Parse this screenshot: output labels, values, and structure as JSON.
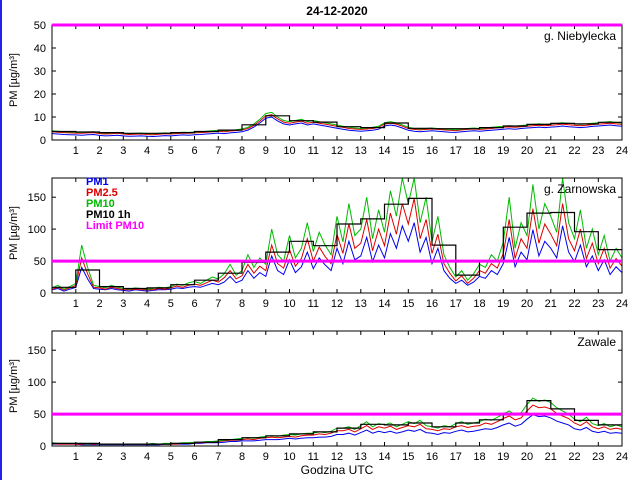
{
  "title": "24-12-2020",
  "xlabel": "Godzina UTC",
  "ylabel": "PM [µg/m³]",
  "colors": {
    "pm1": "#0000ee",
    "pm25": "#dd0000",
    "pm10": "#00bb00",
    "pm10_1h": "#000000",
    "limit": "#ff00ff",
    "window_edge": "#2222ee"
  },
  "legend": [
    {
      "id": "pm1",
      "label": "PM1",
      "color": "#0000ee"
    },
    {
      "id": "pm2-5",
      "label": "PM2.5",
      "color": "#dd0000"
    },
    {
      "id": "pm10",
      "label": "PM10",
      "color": "#00bb00"
    },
    {
      "id": "pm10-1h",
      "label": "PM10 1h",
      "color": "#000000"
    },
    {
      "id": "limit-pm10",
      "label": "Limit PM10",
      "color": "#ff00ff"
    }
  ],
  "chart_data": [
    {
      "type": "line",
      "station": "g. Niebylecka",
      "xlim": [
        0,
        24
      ],
      "ylim": [
        0,
        50
      ],
      "xticks": [
        1,
        2,
        3,
        4,
        5,
        6,
        7,
        8,
        9,
        10,
        11,
        12,
        13,
        14,
        15,
        16,
        17,
        18,
        19,
        20,
        21,
        22,
        23,
        24
      ],
      "yticks": [
        0,
        10,
        20,
        30,
        40,
        50
      ],
      "limit_value": 50,
      "x_start": 0,
      "x_step": 0.25,
      "series": [
        {
          "name": "PM1",
          "color": "#0000ee",
          "values": [
            2.8,
            2.6,
            2.4,
            2.3,
            2.2,
            2.1,
            2.3,
            2.4,
            2,
            1.8,
            1.9,
            2.1,
            1.8,
            1.6,
            1.7,
            1.8,
            1.6,
            1.5,
            1.7,
            1.9,
            1.8,
            2,
            2.2,
            2.1,
            2.3,
            2.4,
            2.6,
            2.8,
            3,
            2.8,
            3.1,
            3.3,
            3.6,
            4.3,
            5.6,
            7.4,
            9.5,
            10,
            8.3,
            7,
            6.5,
            7,
            7.4,
            6.5,
            7,
            6.5,
            6.1,
            5.6,
            5.1,
            4.7,
            4.2,
            4,
            3.8,
            4,
            4.2,
            4.7,
            6.1,
            6.5,
            6.1,
            5.2,
            4.2,
            3.8,
            3.6,
            3.8,
            4,
            3.8,
            3.6,
            3.4,
            3.3,
            3.6,
            3.8,
            4,
            3.8,
            4,
            4.2,
            4.5,
            4.7,
            4.9,
            4.7,
            5,
            5.2,
            5.4,
            5.6,
            5.4,
            5.6,
            5.8,
            6.1,
            5.8,
            5.6,
            5.4,
            5.6,
            5.9,
            6.1,
            6.3,
            6.5,
            6.2,
            6
          ]
        },
        {
          "name": "PM2.5",
          "color": "#dd0000",
          "values": [
            3.6,
            3.4,
            3.2,
            3.1,
            3,
            2.9,
            3.1,
            3.2,
            2.8,
            2.6,
            2.7,
            2.9,
            2.6,
            2.4,
            2.5,
            2.6,
            2.4,
            2.3,
            2.5,
            2.7,
            2.6,
            2.8,
            3,
            2.9,
            3.1,
            3.2,
            3.4,
            3.6,
            3.8,
            3.6,
            3.9,
            4.1,
            4.4,
            5,
            6.3,
            8.2,
            10.5,
            11,
            9.2,
            7.8,
            7.3,
            7.8,
            8.2,
            7.3,
            7.8,
            7.3,
            6.9,
            6.4,
            5.9,
            5.5,
            5,
            4.8,
            4.6,
            4.8,
            5,
            5.5,
            6.9,
            7.3,
            6.9,
            6,
            5,
            4.6,
            4.4,
            4.6,
            4.8,
            4.6,
            4.4,
            4.2,
            4.1,
            4.4,
            4.6,
            4.8,
            4.6,
            4.8,
            5,
            5.3,
            5.5,
            5.7,
            5.5,
            5.8,
            6,
            6.2,
            6.4,
            6.2,
            6.4,
            6.6,
            6.9,
            6.6,
            6.4,
            6.2,
            6.4,
            6.7,
            6.9,
            7.1,
            7.3,
            7,
            6.8
          ]
        },
        {
          "name": "PM10",
          "color": "#00bb00",
          "values": [
            4,
            3.8,
            3.6,
            3.5,
            3.4,
            3.3,
            3.5,
            3.6,
            3.2,
            3,
            3.1,
            3.3,
            3,
            2.8,
            2.9,
            3,
            2.8,
            2.7,
            2.9,
            3.1,
            3,
            3.2,
            3.4,
            3.3,
            3.5,
            3.6,
            3.8,
            4,
            4.2,
            4,
            4.3,
            4.5,
            4.8,
            5.5,
            7,
            9,
            11.5,
            12,
            10,
            8.5,
            8,
            8.5,
            9,
            8,
            8.5,
            8,
            7.5,
            7,
            6.5,
            6,
            5.5,
            5.2,
            5,
            5.2,
            5.5,
            6,
            7.5,
            8,
            7.5,
            6.5,
            5.5,
            5,
            4.8,
            5,
            5.2,
            5,
            4.8,
            4.6,
            4.5,
            4.8,
            5,
            5.2,
            5,
            5.2,
            5.5,
            5.8,
            6,
            6.2,
            6,
            6.3,
            6.5,
            6.8,
            7,
            6.8,
            7,
            7.2,
            7.5,
            7.2,
            7,
            6.8,
            7,
            7.3,
            7.5,
            7.8,
            8,
            7.6,
            7.4
          ]
        }
      ],
      "hourly": {
        "name": "PM10 1h",
        "color": "#000000",
        "values": [
          3.7,
          3.5,
          3.2,
          2.9,
          2.9,
          3.2,
          3.7,
          4.3,
          6.6,
          10.5,
          8.4,
          7.8,
          5.8,
          5.4,
          7.4,
          5.1,
          4.9,
          4.9,
          5.4,
          6.1,
          6.8,
          7.2,
          7,
          7.7
        ]
      }
    },
    {
      "type": "line",
      "station": "g. Zarnowska",
      "xlim": [
        0,
        24
      ],
      "ylim": [
        0,
        180
      ],
      "xticks": [
        1,
        2,
        3,
        4,
        5,
        6,
        7,
        8,
        9,
        10,
        11,
        12,
        13,
        14,
        15,
        16,
        17,
        18,
        19,
        20,
        21,
        22,
        23,
        24
      ],
      "yticks": [
        0,
        50,
        100,
        150
      ],
      "limit_value": 50,
      "x_start": 0,
      "x_step": 0.25,
      "series": [
        {
          "name": "PM1",
          "color": "#0000ee",
          "values": [
            5,
            7,
            3,
            6,
            9,
            40,
            22,
            7,
            6,
            5,
            7,
            5,
            4,
            3,
            5,
            4,
            3,
            4,
            5,
            5,
            6,
            8,
            7,
            9,
            10,
            9,
            12,
            15,
            13,
            17,
            26,
            16,
            20,
            35,
            23,
            32,
            26,
            58,
            35,
            29,
            52,
            32,
            41,
            64,
            38,
            55,
            44,
            35,
            70,
            46,
            81,
            52,
            58,
            87,
            49,
            75,
            55,
            93,
            70,
            105,
            81,
            110,
            64,
            87,
            46,
            70,
            35,
            23,
            15,
            20,
            12,
            17,
            26,
            23,
            35,
            29,
            46,
            87,
            41,
            64,
            52,
            99,
            58,
            81,
            70,
            55,
            105,
            64,
            49,
            75,
            41,
            58,
            35,
            52,
            29,
            41,
            32
          ]
        },
        {
          "name": "PM2.5",
          "color": "#dd0000",
          "values": [
            6,
            9,
            5,
            8,
            12,
            55,
            30,
            9,
            8,
            6,
            9,
            7,
            5,
            5,
            6,
            5,
            5,
            5,
            7,
            6,
            8,
            11,
            9,
            12,
            14,
            12,
            16,
            20,
            17,
            24,
            35,
            22,
            27,
            45,
            31,
            42,
            35,
            75,
            46,
            39,
            68,
            42,
            54,
            85,
            50,
            72,
            57,
            46,
            92,
            62,
            108,
            70,
            78,
            115,
            66,
            100,
            74,
            125,
            92,
            140,
            108,
            148,
            85,
            115,
            62,
            92,
            46,
            31,
            19,
            27,
            15,
            23,
            35,
            31,
            46,
            39,
            62,
            115,
            54,
            85,
            70,
            132,
            78,
            108,
            92,
            74,
            140,
            85,
            66,
            100,
            54,
            78,
            46,
            70,
            39,
            54,
            42
          ]
        },
        {
          "name": "PM10",
          "color": "#00bb00",
          "values": [
            8,
            12,
            6,
            10,
            15,
            75,
            40,
            12,
            10,
            8,
            12,
            9,
            7,
            6,
            8,
            7,
            6,
            7,
            9,
            8,
            10,
            14,
            12,
            16,
            18,
            15,
            20,
            25,
            22,
            30,
            45,
            28,
            35,
            60,
            40,
            55,
            45,
            100,
            60,
            50,
            90,
            55,
            70,
            110,
            65,
            95,
            75,
            60,
            120,
            80,
            140,
            90,
            100,
            150,
            85,
            130,
            95,
            160,
            120,
            180,
            140,
            190,
            110,
            150,
            80,
            120,
            60,
            40,
            25,
            35,
            20,
            30,
            45,
            40,
            60,
            50,
            80,
            150,
            70,
            110,
            90,
            170,
            100,
            140,
            120,
            95,
            180,
            110,
            85,
            130,
            70,
            100,
            60,
            90,
            50,
            70,
            55
          ]
        }
      ],
      "hourly": {
        "name": "PM10 1h",
        "color": "#000000",
        "values": [
          9,
          36,
          10,
          7,
          8,
          13,
          20,
          31,
          48,
          64,
          81,
          74,
          108,
          116,
          139,
          148,
          75,
          28,
          49,
          103,
          125,
          126,
          96,
          68
        ]
      }
    },
    {
      "type": "line",
      "station": "Zawale",
      "xlim": [
        0,
        24
      ],
      "ylim": [
        0,
        180
      ],
      "xticks": [
        1,
        2,
        3,
        4,
        5,
        6,
        7,
        8,
        9,
        10,
        11,
        12,
        13,
        14,
        15,
        16,
        17,
        18,
        19,
        20,
        21,
        22,
        23,
        24
      ],
      "yticks": [
        0,
        50,
        100,
        150
      ],
      "limit_value": 50,
      "x_start": 0,
      "x_step": 0.25,
      "series": [
        {
          "name": "PM1",
          "color": "#0000ee",
          "values": [
            3,
            3,
            3,
            3,
            3,
            2,
            2,
            2,
            2,
            2,
            2,
            2,
            2,
            2,
            2,
            2,
            2,
            2,
            2,
            3,
            3,
            3,
            3,
            3,
            4,
            4,
            5,
            5,
            5,
            6,
            7,
            7,
            8,
            8,
            8,
            9,
            10,
            10,
            10,
            11,
            12,
            11,
            12,
            13,
            13,
            14,
            14,
            15,
            18,
            18,
            20,
            17,
            21,
            25,
            20,
            23,
            21,
            23,
            20,
            22,
            25,
            23,
            26,
            21,
            20,
            18,
            21,
            20,
            23,
            25,
            22,
            23,
            25,
            27,
            26,
            29,
            33,
            36,
            31,
            34,
            42,
            49,
            46,
            47,
            44,
            39,
            36,
            33,
            27,
            25,
            29,
            23,
            21,
            23,
            20,
            21,
            20
          ]
        },
        {
          "name": "PM2.5",
          "color": "#dd0000",
          "values": [
            4,
            3,
            3,
            3,
            3,
            3,
            3,
            3,
            3,
            3,
            3,
            3,
            3,
            3,
            3,
            3,
            3,
            3,
            3,
            3,
            3,
            3,
            4,
            4,
            5,
            5,
            6,
            6,
            7,
            8,
            9,
            9,
            10,
            11,
            10,
            12,
            13,
            14,
            13,
            14,
            15,
            14,
            16,
            17,
            17,
            19,
            18,
            20,
            24,
            24,
            26,
            22,
            27,
            32,
            26,
            30,
            28,
            31,
            26,
            29,
            32,
            30,
            34,
            27,
            26,
            24,
            27,
            26,
            30,
            32,
            29,
            31,
            32,
            36,
            34,
            38,
            43,
            47,
            41,
            44,
            55,
            64,
            60,
            61,
            58,
            51,
            47,
            43,
            36,
            32,
            38,
            30,
            27,
            30,
            26,
            28,
            26
          ]
        },
        {
          "name": "PM10",
          "color": "#00bb00",
          "values": [
            5,
            4,
            4,
            4,
            4,
            4,
            3,
            4,
            3,
            3,
            3,
            3,
            3,
            3,
            3,
            3,
            3,
            4,
            3,
            4,
            4,
            4,
            5,
            5,
            6,
            6,
            7,
            7,
            8,
            9,
            10,
            11,
            12,
            13,
            12,
            14,
            15,
            16,
            15,
            17,
            18,
            17,
            19,
            20,
            20,
            22,
            21,
            23,
            28,
            28,
            30,
            26,
            32,
            38,
            30,
            35,
            33,
            36,
            30,
            34,
            38,
            35,
            40,
            32,
            30,
            28,
            32,
            30,
            35,
            38,
            34,
            36,
            38,
            42,
            40,
            45,
            50,
            55,
            48,
            52,
            65,
            75,
            70,
            72,
            68,
            60,
            55,
            50,
            42,
            38,
            45,
            35,
            32,
            35,
            30,
            33,
            30
          ]
        }
      ],
      "hourly": {
        "name": "PM10 1h",
        "color": "#000000",
        "values": [
          4,
          4,
          3,
          3,
          3,
          4,
          6,
          10,
          13,
          16,
          19,
          22,
          28,
          34,
          33,
          36,
          30,
          36,
          41,
          51,
          71,
          58,
          40,
          33
        ]
      }
    }
  ]
}
